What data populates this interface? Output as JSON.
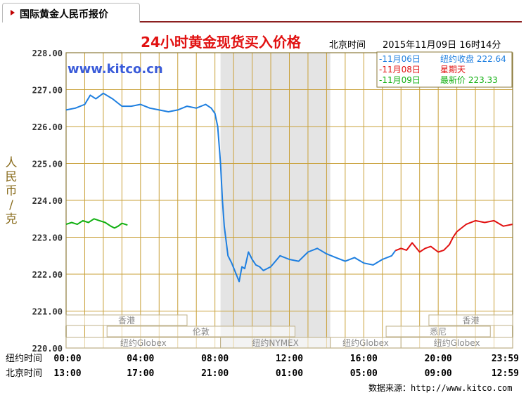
{
  "panel": {
    "title": "国际黄金人民币报价"
  },
  "colors": {
    "prev_day": "#1e7fe0",
    "weekend": "#e11111",
    "today": "#12b012",
    "grid": "#c9a13a",
    "frame": "#8b7a3a",
    "session": "#bfb18a",
    "title": "#e11111"
  },
  "header": {
    "time_label": "北京时间",
    "timestamp": "2015年11月09日 16时14分",
    "watermark": "www.kitco.cn"
  },
  "legend": [
    {
      "date": "11月06日",
      "text": "纽约收盘 222.64",
      "color": "#1e7fe0"
    },
    {
      "date": "11月08日",
      "text": "星期天",
      "color": "#e11111"
    },
    {
      "date": "11月09日",
      "text": "最新价 223.33",
      "color": "#12b012"
    }
  ],
  "row_labels": {
    "ny": "纽约时间",
    "bj": "北京时间"
  },
  "ylabel_chars": [
    "人",
    "民",
    "币",
    "/",
    "克"
  ],
  "source": "数据来源：http://www.kitco.com",
  "sessions": [
    {
      "name": "香港",
      "start": 0,
      "end": 6.5,
      "row": 0
    },
    {
      "name": "香港",
      "start": 19.5,
      "end": 24,
      "row": 0
    },
    {
      "name": "伦敦",
      "start": 2.2,
      "end": 12.3,
      "row": 1
    },
    {
      "name": "悉尼",
      "start": 17.2,
      "end": 22.8,
      "row": 1
    },
    {
      "name": "纽约Globex",
      "start": 0,
      "end": 8.3,
      "row": 2
    },
    {
      "name": "纽约NYMEX",
      "start": 8.3,
      "end": 14.2,
      "row": 2
    },
    {
      "name": "纽约Globex",
      "start": 14.2,
      "end": 18.0,
      "row": 2
    },
    {
      "name": "纽约Globex",
      "start": 18.0,
      "end": 24,
      "row": 2
    }
  ],
  "chart_data": {
    "type": "line",
    "title": "24小时黄金现货买入价格",
    "ylim": [
      220,
      228
    ],
    "xlim": [
      0,
      24
    ],
    "y_ticks": [
      "228.00",
      "227.00",
      "226.00",
      "225.00",
      "224.00",
      "223.00",
      "222.00",
      "221.00",
      "220.00"
    ],
    "x_ticks_ny": [
      "00:00",
      "04:00",
      "08:00",
      "12:00",
      "16:00",
      "20:00",
      "23:59"
    ],
    "x_ticks_bj": [
      "13:00",
      "17:00",
      "21:00",
      "01:00",
      "05:00",
      "09:00",
      "12:59"
    ],
    "shaded_range": [
      8.3,
      14.2
    ],
    "grid": true,
    "series": [
      {
        "name": "11月06日",
        "color": "#1e7fe0",
        "x": [
          0,
          0.5,
          1.0,
          1.3,
          1.6,
          2.0,
          2.5,
          3.0,
          3.5,
          4.0,
          4.5,
          5.0,
          5.5,
          6.0,
          6.5,
          7.0,
          7.5,
          7.8,
          8.0,
          8.15,
          8.3,
          8.4,
          8.5,
          8.7,
          8.9,
          9.1,
          9.3,
          9.45,
          9.6,
          9.8,
          10.0,
          10.2,
          10.4,
          10.6,
          10.8,
          11.0,
          11.5,
          12.0,
          12.5,
          13.0,
          13.5,
          14.0,
          14.5,
          15.0,
          15.5,
          16.0,
          16.5,
          17.0,
          17.5,
          17.7
        ],
        "y": [
          226.45,
          226.5,
          226.6,
          226.85,
          226.75,
          226.9,
          226.75,
          226.55,
          226.55,
          226.6,
          226.5,
          226.45,
          226.4,
          226.45,
          226.55,
          226.5,
          226.6,
          226.5,
          226.35,
          226.0,
          225.0,
          224.0,
          223.3,
          222.5,
          222.3,
          222.05,
          221.8,
          222.2,
          222.15,
          222.6,
          222.4,
          222.25,
          222.2,
          222.1,
          222.15,
          222.2,
          222.5,
          222.4,
          222.35,
          222.6,
          222.7,
          222.55,
          222.45,
          222.35,
          222.45,
          222.3,
          222.25,
          222.4,
          222.5,
          222.64
        ]
      },
      {
        "name": "11月08日",
        "color": "#e11111",
        "x": [
          17.7,
          18.0,
          18.3,
          18.6,
          19.0,
          19.3,
          19.6,
          20.0,
          20.3,
          20.6,
          20.8,
          21.0,
          21.5,
          22.0,
          22.5,
          23.0,
          23.5,
          23.99
        ],
        "y": [
          222.64,
          222.7,
          222.65,
          222.85,
          222.6,
          222.7,
          222.75,
          222.6,
          222.65,
          222.8,
          223.0,
          223.15,
          223.35,
          223.45,
          223.4,
          223.45,
          223.3,
          223.35
        ]
      },
      {
        "name": "11月09日",
        "color": "#12b012",
        "x": [
          0,
          0.3,
          0.6,
          0.9,
          1.2,
          1.5,
          1.8,
          2.1,
          2.4,
          2.6,
          2.8,
          3.0,
          3.3
        ],
        "y": [
          223.35,
          223.4,
          223.35,
          223.45,
          223.4,
          223.5,
          223.45,
          223.4,
          223.3,
          223.25,
          223.3,
          223.38,
          223.33
        ]
      }
    ]
  }
}
